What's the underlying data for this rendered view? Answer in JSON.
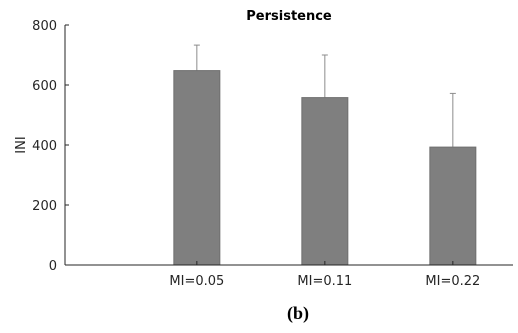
{
  "chart_data": {
    "type": "bar",
    "title": "Persistence",
    "xlabel": "",
    "ylabel": "INI",
    "categories": [
      "MI=0.05",
      "MI=0.11",
      "MI=0.22"
    ],
    "values": [
      648,
      558,
      393
    ],
    "error_upper": [
      733,
      700,
      572
    ],
    "ylim": [
      0,
      800
    ],
    "yticks": [
      "0",
      "200",
      "400",
      "600",
      "800"
    ],
    "grid": false,
    "bar_color": "#7f7f7f",
    "caption": "(b)"
  }
}
